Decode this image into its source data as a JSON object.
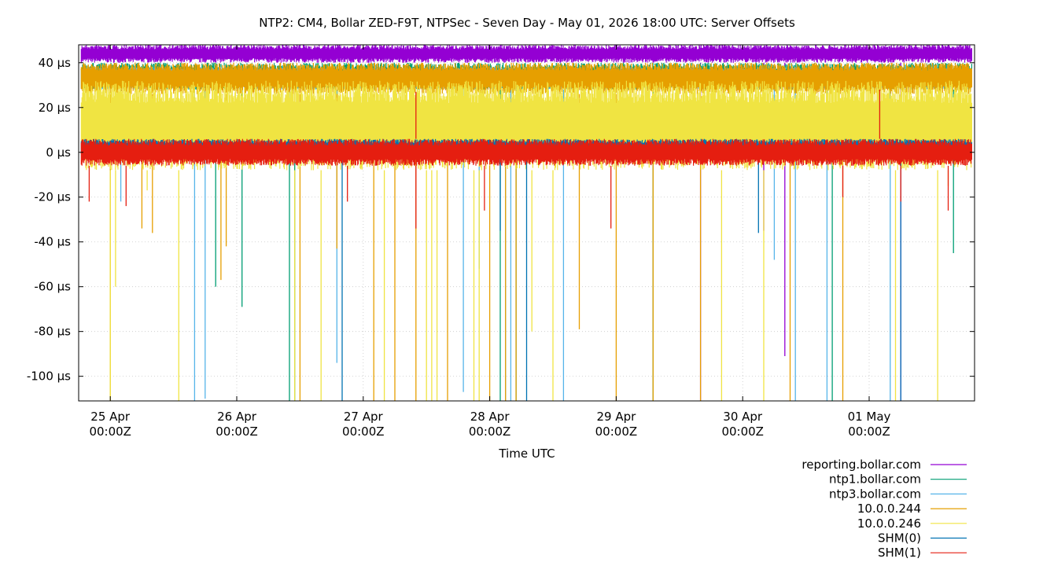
{
  "chart_data": {
    "type": "line",
    "title": "NTP2: CM4, Bollar ZED-F9T, NTPSec - Seven Day - May 01, 2026 18:00 UTC: Server Offsets",
    "xlabel": "Time UTC",
    "ylabel": "",
    "x_unit": "hours since 25 Apr 00:00Z",
    "xlim": [
      -6,
      164
    ],
    "ylim": [
      -111,
      48
    ],
    "y_ticks": [
      {
        "value": 40,
        "label": "40 µs"
      },
      {
        "value": 20,
        "label": "20 µs"
      },
      {
        "value": 0,
        "label": "0 µs"
      },
      {
        "value": -20,
        "label": "-20 µs"
      },
      {
        "value": -40,
        "label": "-40 µs"
      },
      {
        "value": -60,
        "label": "-60 µs"
      },
      {
        "value": -80,
        "label": "-80 µs"
      },
      {
        "value": -100,
        "label": "-100 µs"
      }
    ],
    "x_ticks": [
      {
        "value": 0,
        "line1": "25 Apr",
        "line2": "00:00Z"
      },
      {
        "value": 24,
        "line1": "26 Apr",
        "line2": "00:00Z"
      },
      {
        "value": 48,
        "line1": "27 Apr",
        "line2": "00:00Z"
      },
      {
        "value": 72,
        "line1": "28 Apr",
        "line2": "00:00Z"
      },
      {
        "value": 96,
        "line1": "29 Apr",
        "line2": "00:00Z"
      },
      {
        "value": 120,
        "line1": "30 Apr",
        "line2": "00:00Z"
      },
      {
        "value": 144,
        "line1": "01 May",
        "line2": "00:00Z"
      }
    ],
    "grid": true,
    "legend_position": "bottom-right",
    "series": [
      {
        "name": "reporting.bollar.com",
        "color": "#9400d3",
        "band": [
          40,
          48
        ],
        "spikes": [
          [
            112,
            -111
          ],
          [
            124,
            -35
          ],
          [
            128,
            -91
          ],
          [
            150,
            -111
          ]
        ]
      },
      {
        "name": "ntp1.bollar.com",
        "color": "#009e73",
        "band": [
          28,
          40
        ],
        "spikes": [
          [
            20,
            -60
          ],
          [
            25,
            -69
          ],
          [
            34,
            -111
          ],
          [
            35,
            -111
          ],
          [
            74,
            -111
          ],
          [
            77,
            -111
          ],
          [
            103,
            -111
          ],
          [
            137,
            -111
          ],
          [
            160,
            -45
          ]
        ]
      },
      {
        "name": "ntp3.bollar.com",
        "color": "#56b4e9",
        "band": [
          28,
          38
        ],
        "spikes": [
          [
            2,
            -22
          ],
          [
            16,
            -111
          ],
          [
            18,
            -110
          ],
          [
            43,
            -94
          ],
          [
            67,
            -107
          ],
          [
            70,
            -52
          ],
          [
            75,
            -111
          ],
          [
            76,
            -111
          ],
          [
            86,
            -111
          ],
          [
            126,
            -48
          ],
          [
            130,
            -111
          ],
          [
            136,
            -111
          ],
          [
            148,
            -111
          ]
        ]
      },
      {
        "name": "10.0.0.244",
        "color": "#e69f00",
        "band": [
          26,
          40
        ],
        "spikes": [
          [
            0,
            -111
          ],
          [
            6,
            -34
          ],
          [
            8,
            -36
          ],
          [
            21,
            -57
          ],
          [
            22,
            -42
          ],
          [
            36,
            -111
          ],
          [
            43,
            -43
          ],
          [
            50,
            -111
          ],
          [
            54,
            -111
          ],
          [
            58,
            -111
          ],
          [
            64,
            -111
          ],
          [
            72,
            -111
          ],
          [
            75,
            -111
          ],
          [
            77,
            -111
          ],
          [
            89,
            -79
          ],
          [
            96,
            -111
          ],
          [
            103,
            -111
          ],
          [
            112,
            -111
          ],
          [
            129,
            -111
          ],
          [
            139,
            -111
          ]
        ]
      },
      {
        "name": "10.0.0.246",
        "color": "#f0e442",
        "band": [
          -8,
          32
        ],
        "spikes": [
          [
            0,
            -111
          ],
          [
            1,
            -60
          ],
          [
            7,
            -17
          ],
          [
            13,
            -111
          ],
          [
            35,
            -111
          ],
          [
            40,
            -111
          ],
          [
            52,
            -111
          ],
          [
            60,
            -111
          ],
          [
            61,
            -111
          ],
          [
            62,
            -111
          ],
          [
            69,
            -111
          ],
          [
            70,
            -111
          ],
          [
            80,
            -80
          ],
          [
            84,
            -111
          ],
          [
            116,
            -111
          ],
          [
            124,
            -111
          ],
          [
            149,
            -111
          ],
          [
            157,
            -111
          ],
          [
            159,
            -15
          ]
        ]
      },
      {
        "name": "SHM(0)",
        "color": "#0072b2",
        "band": [
          -2,
          6
        ],
        "spikes": [
          [
            44,
            -111
          ],
          [
            74,
            -35
          ],
          [
            79,
            -111
          ],
          [
            123,
            -36
          ],
          [
            150,
            -111
          ]
        ]
      },
      {
        "name": "SHM(1)",
        "color": "#e51e10",
        "band": [
          -6,
          6
        ],
        "spikes": [
          [
            -4,
            -22
          ],
          [
            3,
            -24
          ],
          [
            45,
            -22
          ],
          [
            58,
            -34
          ],
          [
            58,
            27
          ],
          [
            71,
            -26
          ],
          [
            95,
            -34
          ],
          [
            139,
            -20
          ],
          [
            146,
            28
          ],
          [
            150,
            -22
          ],
          [
            159,
            -26
          ]
        ]
      }
    ]
  }
}
